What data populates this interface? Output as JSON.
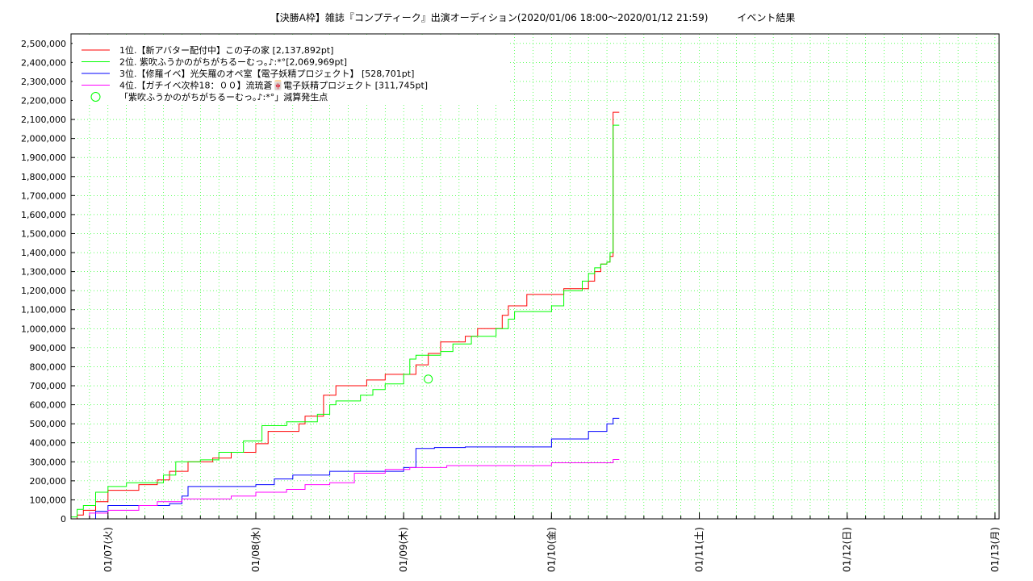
{
  "chart_data": {
    "type": "line",
    "title": "【決勝A枠】雑誌『コンプティーク』出演オーディション(2020/01/06 18:00～2020/01/12 21:59)　　　イベント結果",
    "xlabel": "",
    "ylabel": "",
    "grid": true,
    "legend_position": "top-left",
    "x_ticks": [
      "01/07(火)",
      "01/08(水)",
      "01/09(木)",
      "01/10(金)",
      "01/11(土)",
      "01/12(日)",
      "01/13(月)"
    ],
    "y_ticks": [
      "0",
      "100,000",
      "200,000",
      "300,000",
      "400,000",
      "500,000",
      "600,000",
      "700,000",
      "800,000",
      "900,000",
      "1,000,000",
      "1,100,000",
      "1,200,000",
      "1,300,000",
      "1,400,000",
      "1,500,000",
      "1,600,000",
      "1,700,000",
      "1,800,000",
      "1,900,000",
      "2,000,000",
      "2,100,000",
      "2,200,000",
      "2,300,000",
      "2,400,000",
      "2,500,000"
    ],
    "ylim": [
      0,
      2550000
    ],
    "xlim": [
      "2020-01-06 18:00",
      "2020-01-13 00:40"
    ],
    "series": [
      {
        "name": "1位.【新アバター配付中】この子の家 [2,137,892pt]",
        "color": "#ff0000",
        "points": [
          [
            "2020-01-06 18:00",
            0
          ],
          [
            "2020-01-06 19:00",
            20000
          ],
          [
            "2020-01-06 20:00",
            45000
          ],
          [
            "2020-01-06 22:00",
            90000
          ],
          [
            "2020-01-07 00:00",
            150000
          ],
          [
            "2020-01-07 05:00",
            180000
          ],
          [
            "2020-01-07 08:00",
            205000
          ],
          [
            "2020-01-07 10:00",
            250000
          ],
          [
            "2020-01-07 13:00",
            300000
          ],
          [
            "2020-01-07 17:00",
            320000
          ],
          [
            "2020-01-07 20:00",
            350000
          ],
          [
            "2020-01-08 00:00",
            395000
          ],
          [
            "2020-01-08 02:00",
            460000
          ],
          [
            "2020-01-08 07:00",
            500000
          ],
          [
            "2020-01-08 08:00",
            540000
          ],
          [
            "2020-01-08 11:00",
            650000
          ],
          [
            "2020-01-08 13:00",
            700000
          ],
          [
            "2020-01-08 18:00",
            730000
          ],
          [
            "2020-01-08 21:00",
            760000
          ],
          [
            "2020-01-09 01:00",
            760000
          ],
          [
            "2020-01-09 02:00",
            810000
          ],
          [
            "2020-01-09 04:00",
            870000
          ],
          [
            "2020-01-09 06:00",
            930000
          ],
          [
            "2020-01-09 10:00",
            960000
          ],
          [
            "2020-01-09 12:00",
            1000000
          ],
          [
            "2020-01-09 16:00",
            1070000
          ],
          [
            "2020-01-09 17:00",
            1120000
          ],
          [
            "2020-01-09 20:00",
            1180000
          ],
          [
            "2020-01-10 02:00",
            1210000
          ],
          [
            "2020-01-10 06:00",
            1250000
          ],
          [
            "2020-01-10 07:00",
            1300000
          ],
          [
            "2020-01-10 08:00",
            1340000
          ],
          [
            "2020-01-10 09:00",
            1350000
          ],
          [
            "2020-01-10 09:30",
            1380000
          ],
          [
            "2020-01-10 10:00",
            2137892
          ],
          [
            "2020-01-10 11:00",
            2137892
          ]
        ]
      },
      {
        "name": "2位. 紫吹ふうかのがちがちるーむっ｡♪:*°[2,069,969pt]",
        "color": "#00ff00",
        "points": [
          [
            "2020-01-06 18:00",
            10000
          ],
          [
            "2020-01-06 19:00",
            50000
          ],
          [
            "2020-01-06 20:00",
            70000
          ],
          [
            "2020-01-06 22:00",
            140000
          ],
          [
            "2020-01-07 00:00",
            170000
          ],
          [
            "2020-01-07 03:00",
            190000
          ],
          [
            "2020-01-07 09:00",
            230000
          ],
          [
            "2020-01-07 11:00",
            300000
          ],
          [
            "2020-01-07 15:00",
            310000
          ],
          [
            "2020-01-07 18:00",
            350000
          ],
          [
            "2020-01-07 22:00",
            410000
          ],
          [
            "2020-01-08 01:00",
            490000
          ],
          [
            "2020-01-08 05:00",
            510000
          ],
          [
            "2020-01-08 10:00",
            550000
          ],
          [
            "2020-01-08 12:00",
            600000
          ],
          [
            "2020-01-08 13:00",
            620000
          ],
          [
            "2020-01-08 17:00",
            650000
          ],
          [
            "2020-01-08 19:00",
            680000
          ],
          [
            "2020-01-08 21:00",
            710000
          ],
          [
            "2020-01-09 00:00",
            760000
          ],
          [
            "2020-01-09 01:00",
            840000
          ],
          [
            "2020-01-09 02:00",
            860000
          ],
          [
            "2020-01-09 06:00",
            880000
          ],
          [
            "2020-01-09 08:00",
            920000
          ],
          [
            "2020-01-09 11:00",
            960000
          ],
          [
            "2020-01-09 15:00",
            1000000
          ],
          [
            "2020-01-09 17:00",
            1050000
          ],
          [
            "2020-01-09 18:00",
            1090000
          ],
          [
            "2020-01-10 00:00",
            1120000
          ],
          [
            "2020-01-10 02:00",
            1200000
          ],
          [
            "2020-01-10 05:00",
            1250000
          ],
          [
            "2020-01-10 06:00",
            1290000
          ],
          [
            "2020-01-10 07:00",
            1320000
          ],
          [
            "2020-01-10 08:00",
            1340000
          ],
          [
            "2020-01-10 09:00",
            1350000
          ],
          [
            "2020-01-10 09:30",
            1400000
          ],
          [
            "2020-01-10 10:00",
            2069969
          ],
          [
            "2020-01-10 11:00",
            2069969
          ]
        ]
      },
      {
        "name": "3位.【修羅イベ】光矢羅のオペ室【電子妖精プロジェクト】 [528,701pt]",
        "color": "#0000ff",
        "points": [
          [
            "2020-01-06 18:00",
            0
          ],
          [
            "2020-01-06 22:00",
            40000
          ],
          [
            "2020-01-07 00:00",
            70000
          ],
          [
            "2020-01-07 10:00",
            80000
          ],
          [
            "2020-01-07 12:00",
            120000
          ],
          [
            "2020-01-07 13:00",
            170000
          ],
          [
            "2020-01-08 00:00",
            180000
          ],
          [
            "2020-01-08 03:00",
            210000
          ],
          [
            "2020-01-08 06:00",
            230000
          ],
          [
            "2020-01-08 12:00",
            250000
          ],
          [
            "2020-01-09 00:00",
            270000
          ],
          [
            "2020-01-09 02:00",
            370000
          ],
          [
            "2020-01-09 05:00",
            375000
          ],
          [
            "2020-01-09 10:00",
            378000
          ],
          [
            "2020-01-10 00:00",
            420000
          ],
          [
            "2020-01-10 06:00",
            460000
          ],
          [
            "2020-01-10 09:00",
            500000
          ],
          [
            "2020-01-10 10:00",
            528701
          ],
          [
            "2020-01-10 11:00",
            528701
          ]
        ]
      },
      {
        "name": "4位.【ガチイベ次枠18：００】流琉蒼🀄電子妖精プロジェクト [311,745pt]",
        "color": "#ff00ff",
        "points": [
          [
            "2020-01-06 18:00",
            0
          ],
          [
            "2020-01-06 21:00",
            30000
          ],
          [
            "2020-01-07 00:00",
            45000
          ],
          [
            "2020-01-07 05:00",
            70000
          ],
          [
            "2020-01-07 08:00",
            90000
          ],
          [
            "2020-01-07 12:00",
            105000
          ],
          [
            "2020-01-07 20:00",
            120000
          ],
          [
            "2020-01-08 00:00",
            140000
          ],
          [
            "2020-01-08 05:00",
            155000
          ],
          [
            "2020-01-08 08:00",
            180000
          ],
          [
            "2020-01-08 12:00",
            190000
          ],
          [
            "2020-01-08 16:00",
            240000
          ],
          [
            "2020-01-08 21:00",
            260000
          ],
          [
            "2020-01-09 01:00",
            270000
          ],
          [
            "2020-01-09 07:00",
            280000
          ],
          [
            "2020-01-10 00:00",
            295000
          ],
          [
            "2020-01-10 10:00",
            311745
          ],
          [
            "2020-01-10 11:00",
            311745
          ]
        ]
      }
    ],
    "annotations": [
      {
        "label": "「紫吹ふうかのがちがちるーむっ｡♪:*°」減算発生点",
        "color": "#00ff00",
        "marker": "circle",
        "points": [
          [
            "2020-01-09 04:00",
            735000
          ]
        ]
      }
    ]
  }
}
